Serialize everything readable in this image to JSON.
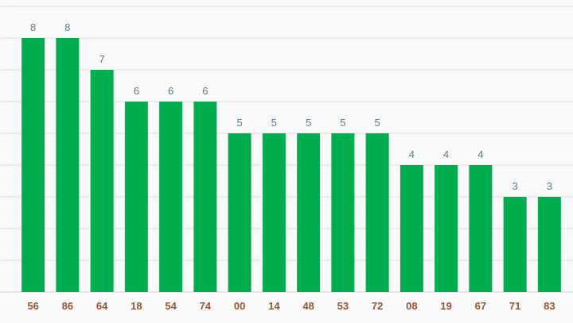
{
  "colors": {
    "bar": "#00ad4f",
    "value_label": "#5a7a8c",
    "category_label": "#a0522d",
    "grid": "#dcdcdc",
    "background": "#fafafa"
  },
  "chart_data": {
    "type": "bar",
    "categories": [
      "56",
      "86",
      "64",
      "18",
      "54",
      "74",
      "00",
      "14",
      "48",
      "53",
      "72",
      "08",
      "19",
      "67",
      "71",
      "83"
    ],
    "values": [
      8,
      8,
      7,
      6,
      6,
      6,
      5,
      5,
      5,
      5,
      5,
      4,
      4,
      4,
      3,
      3
    ],
    "title": "",
    "xlabel": "",
    "ylabel": "",
    "ylim": [
      0,
      9
    ],
    "grid": true,
    "data_labels": true,
    "legend": "none"
  }
}
